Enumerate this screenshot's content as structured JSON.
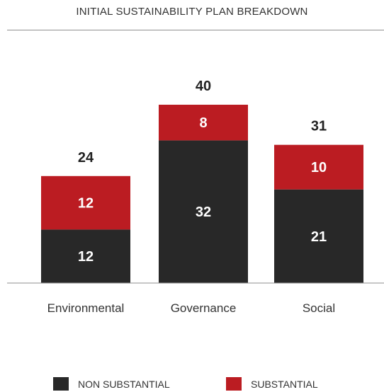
{
  "chart_data": {
    "type": "bar",
    "stacked": true,
    "title": "INITIAL SUSTAINABILITY PLAN BREAKDOWN",
    "xlabel": "",
    "ylabel": "",
    "grid": false,
    "legend_position": "bottom",
    "categories": [
      "Environmental",
      "Governance",
      "Social"
    ],
    "series": [
      {
        "name": "NON SUBSTANTIAL",
        "color": "#282828",
        "values": [
          12,
          32,
          21
        ]
      },
      {
        "name": "SUBSTANTIAL",
        "color": "#bb1c22",
        "values": [
          12,
          8,
          10
        ]
      }
    ],
    "totals": [
      24,
      40,
      31
    ],
    "ylim": [
      0,
      40
    ]
  },
  "legend": {
    "items": [
      {
        "label": "NON SUBSTANTIAL",
        "color": "#282828"
      },
      {
        "label": "SUBSTANTIAL",
        "color": "#bb1c22"
      }
    ]
  }
}
